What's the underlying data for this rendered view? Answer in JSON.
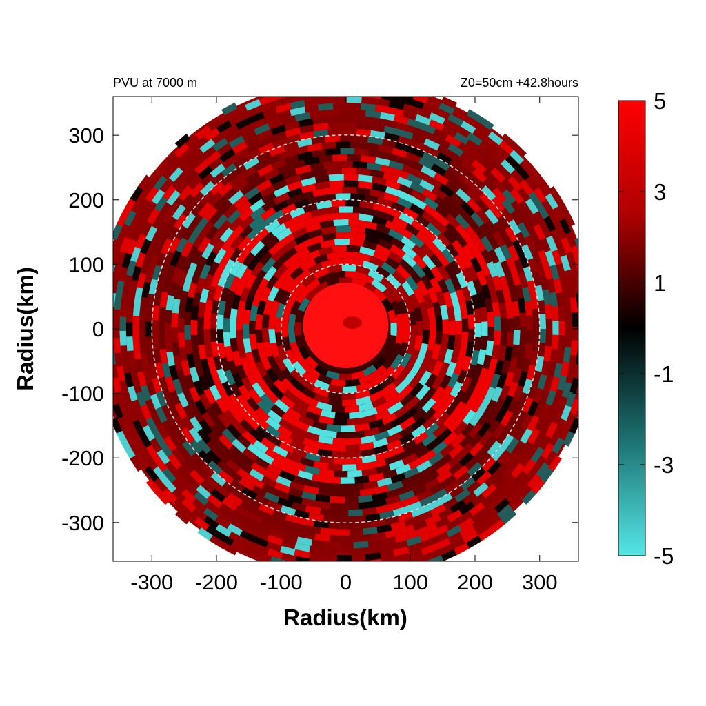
{
  "chart_data": {
    "type": "heatmap",
    "title_left": "PVU at  7000 m",
    "title_right": "Z0=50cm  +42.8hours",
    "xlabel": "Radius(km)",
    "ylabel": "Radius(km)",
    "xlim": [
      -360,
      360
    ],
    "ylim": [
      -360,
      360
    ],
    "xticks": [
      -300,
      -200,
      -100,
      0,
      100,
      200,
      300
    ],
    "yticks": [
      300,
      200,
      100,
      0,
      -100,
      -200,
      -300
    ],
    "xtick_labels": [
      "-300",
      "-200",
      "-100",
      "0",
      "100",
      "200",
      "300"
    ],
    "ytick_labels": [
      "300",
      "200",
      "100",
      "0",
      "-100",
      "-200",
      "-300"
    ],
    "reference_circles_km": [
      100,
      200,
      300
    ],
    "domain_radius_km": 385,
    "core_radius_km": 70,
    "colorbar": {
      "range": [
        -5,
        5
      ],
      "ticks": [
        5,
        3,
        1,
        -1,
        -3,
        -5
      ],
      "tick_labels": [
        "5",
        "3",
        "1",
        "-1",
        "-3",
        "-5"
      ],
      "colors": {
        "max": "#ff0000",
        "mid": "#000000",
        "min": "#55e6e6"
      }
    }
  }
}
